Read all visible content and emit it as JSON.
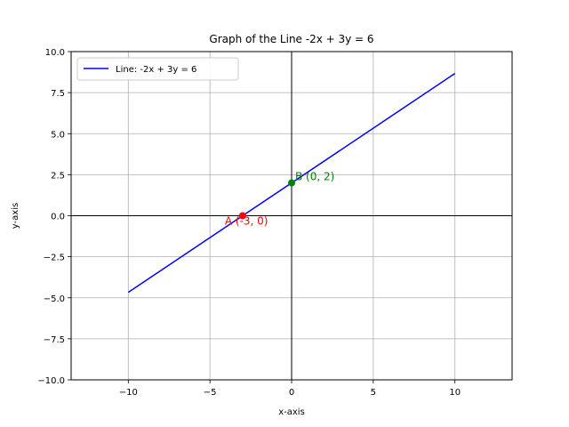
{
  "chart_data": {
    "type": "line",
    "title": "Graph of the Line -2x + 3y = 6",
    "xlabel": "x-axis",
    "ylabel": "y-axis",
    "xlim": [
      -13.5,
      13.5
    ],
    "ylim": [
      -10,
      10
    ],
    "xticks": [
      -10,
      -5,
      0,
      5,
      10
    ],
    "xtick_labels": [
      "−10",
      "−5",
      "0",
      "5",
      "10"
    ],
    "yticks": [
      -10,
      -7.5,
      -5,
      -2.5,
      0,
      2.5,
      5,
      7.5,
      10
    ],
    "ytick_labels": [
      "−10.0",
      "−7.5",
      "−5.0",
      "−2.5",
      "0.0",
      "2.5",
      "5.0",
      "7.5",
      "10.0"
    ],
    "grid": true,
    "legend_position": "upper-left",
    "series": [
      {
        "name": "Line: -2x + 3y = 6",
        "color": "#0000ff",
        "x": [
          -10,
          10
        ],
        "y": [
          -4.667,
          8.667
        ]
      }
    ],
    "points": [
      {
        "label": "A (-3, 0)",
        "x": -3,
        "y": 0,
        "color": "#ff0000"
      },
      {
        "label": "B (0, 2)",
        "x": 0,
        "y": 2,
        "color": "#008000"
      }
    ]
  }
}
